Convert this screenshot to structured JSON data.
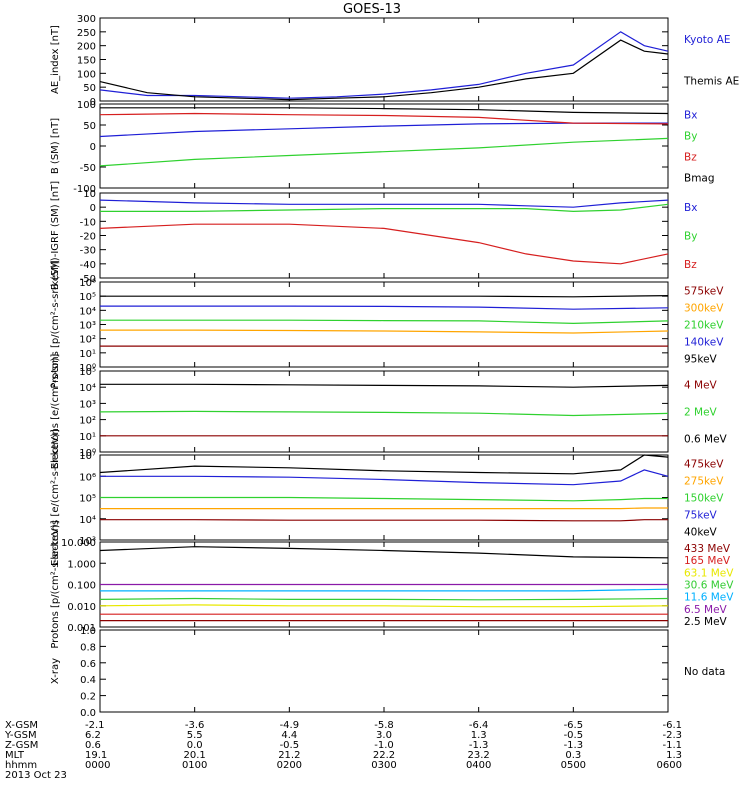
{
  "title": "GOES-13",
  "no_data_text": "No data",
  "colors": {
    "black": "#000000",
    "blue": "#1f1fd6",
    "green": "#2fd12f",
    "red": "#d61f1f",
    "darkred": "#8b0000",
    "orange": "#ffa500",
    "navy": "#1a2ecc",
    "teal": "#00a5a5",
    "yellow": "#e8e800",
    "lime": "#33cc33",
    "skyblue": "#00b0ff",
    "purple": "#8a1aa8",
    "brown": "#8b2500"
  },
  "chart_data": [
    {
      "type": "line",
      "ylabel": "AE_index [nT]",
      "ylim": [
        0,
        300
      ],
      "yticks": [
        "300",
        "250",
        "200",
        "150",
        "100",
        "50",
        "0"
      ],
      "x": [
        0,
        30,
        60,
        90,
        120,
        150,
        180,
        210,
        240,
        270,
        300,
        330,
        345,
        360
      ],
      "series": [
        {
          "name": "Kyoto AE",
          "color": "blue",
          "values": [
            40,
            20,
            20,
            15,
            10,
            15,
            25,
            40,
            60,
            100,
            130,
            250,
            200,
            180
          ]
        },
        {
          "name": "Themis AE",
          "color": "black",
          "values": [
            70,
            30,
            15,
            10,
            5,
            10,
            15,
            30,
            50,
            80,
            100,
            220,
            180,
            170
          ]
        }
      ]
    },
    {
      "type": "line",
      "ylabel": "B (SM) [nT]",
      "ylim": [
        -110,
        110
      ],
      "yticks": [
        "100",
        "50",
        "0",
        "-50",
        "-100"
      ],
      "x": [
        0,
        60,
        120,
        180,
        240,
        300,
        360
      ],
      "series": [
        {
          "name": "Bx",
          "color": "blue",
          "values": [
            25,
            38,
            45,
            52,
            58,
            60,
            60
          ]
        },
        {
          "name": "By",
          "color": "green",
          "values": [
            -52,
            -35,
            -25,
            -15,
            -5,
            10,
            20
          ]
        },
        {
          "name": "Bz",
          "color": "red",
          "values": [
            82,
            85,
            82,
            80,
            75,
            60,
            58
          ]
        },
        {
          "name": "Bmag",
          "color": "black",
          "values": [
            100,
            100,
            100,
            98,
            95,
            88,
            85
          ]
        }
      ]
    },
    {
      "type": "line",
      "ylabel": "B (SM)-IGRF (SM) [nT]",
      "ylim": [
        -50,
        10
      ],
      "yticks": [
        "10",
        "0",
        "-10",
        "-20",
        "-30",
        "-40",
        "-50"
      ],
      "x": [
        0,
        60,
        120,
        180,
        240,
        270,
        300,
        330,
        360
      ],
      "series": [
        {
          "name": "Bx",
          "color": "blue",
          "values": [
            5,
            3,
            2,
            2,
            2,
            1,
            0,
            3,
            5
          ]
        },
        {
          "name": "By",
          "color": "green",
          "values": [
            -3,
            -3,
            -2,
            -1,
            -1,
            -1,
            -3,
            -2,
            2
          ]
        },
        {
          "name": "Bz",
          "color": "red",
          "values": [
            -15,
            -12,
            -12,
            -15,
            -25,
            -33,
            -38,
            -40,
            -33
          ]
        }
      ]
    },
    {
      "type": "line",
      "ylabel": "Protons [p/(cm²-s-sr-keV)]",
      "yscale": "log",
      "ylim": [
        1,
        1000000
      ],
      "yticks": [
        "10⁶",
        "10⁵",
        "10⁴",
        "10³",
        "10²",
        "10¹",
        "10⁰"
      ],
      "x": [
        0,
        60,
        120,
        180,
        240,
        300,
        360
      ],
      "series": [
        {
          "name": "575keV",
          "color": "darkred",
          "values": [
            30,
            30,
            30,
            30,
            30,
            30,
            30
          ]
        },
        {
          "name": "300keV",
          "color": "orange",
          "values": [
            400,
            400,
            380,
            350,
            300,
            250,
            350
          ]
        },
        {
          "name": "210keV",
          "color": "green",
          "values": [
            2000,
            2000,
            2000,
            1900,
            1800,
            1200,
            1800
          ]
        },
        {
          "name": "140keV",
          "color": "blue",
          "values": [
            20000,
            20000,
            20000,
            19000,
            17000,
            12000,
            15000
          ]
        },
        {
          "name": "95keV",
          "color": "black",
          "values": [
            100000,
            100000,
            100000,
            100000,
            100000,
            90000,
            110000
          ]
        }
      ]
    },
    {
      "type": "line",
      "ylabel": "Electrons [e/(cm²-s-sr)]",
      "yscale": "log",
      "ylim": [
        1,
        100000
      ],
      "yticks": [
        "10⁵",
        "10⁴",
        "10³",
        "10²",
        "10¹",
        "10⁰"
      ],
      "x": [
        0,
        60,
        120,
        180,
        240,
        300,
        360
      ],
      "series": [
        {
          "name": "4 MeV",
          "color": "darkred",
          "values": [
            10,
            10,
            10,
            10,
            10,
            10,
            10
          ]
        },
        {
          "name": "2 MeV",
          "color": "green",
          "values": [
            300,
            320,
            300,
            280,
            250,
            180,
            240
          ]
        },
        {
          "name": "0.6 MeV",
          "color": "black",
          "values": [
            15000,
            15000,
            14000,
            13000,
            12000,
            10000,
            13000
          ]
        }
      ]
    },
    {
      "type": "line",
      "ylabel": "Electrons [e/(cm²-s-sr-keV)]",
      "yscale": "log",
      "ylim": [
        1000,
        10000000
      ],
      "yticks": [
        "10⁷",
        "10⁶",
        "10⁵",
        "10⁴",
        "10³"
      ],
      "x": [
        0,
        60,
        120,
        180,
        240,
        300,
        330,
        345,
        360
      ],
      "series": [
        {
          "name": "475keV",
          "color": "darkred",
          "values": [
            9000,
            9000,
            8500,
            8500,
            8500,
            8000,
            8000,
            9000,
            9000
          ]
        },
        {
          "name": "275keV",
          "color": "orange",
          "values": [
            30000,
            30000,
            30000,
            30000,
            30000,
            30000,
            30000,
            32000,
            32000
          ]
        },
        {
          "name": "150keV",
          "color": "green",
          "values": [
            100000,
            100000,
            100000,
            90000,
            80000,
            70000,
            80000,
            90000,
            90000
          ]
        },
        {
          "name": "75keV",
          "color": "blue",
          "values": [
            1000000,
            1000000,
            900000,
            700000,
            500000,
            400000,
            600000,
            2000000,
            1000000
          ]
        },
        {
          "name": "40keV",
          "color": "black",
          "values": [
            1500000,
            3000000,
            2500000,
            1800000,
            1500000,
            1300000,
            2000000,
            10000000,
            8000000
          ]
        }
      ]
    },
    {
      "type": "line",
      "ylabel": "Protons [p/(cm²-s-sr-keV)]",
      "yscale": "log",
      "ylim": [
        0.001,
        10
      ],
      "yticks": [
        "10.000",
        "1.000",
        "0.100",
        "0.010",
        "0.001"
      ],
      "x": [
        0,
        60,
        120,
        180,
        240,
        300,
        360
      ],
      "series": [
        {
          "name": "433 MeV",
          "color": "darkred",
          "values": [
            0.002,
            0.002,
            0.002,
            0.002,
            0.002,
            0.002,
            0.002
          ]
        },
        {
          "name": "165 MeV",
          "color": "red",
          "values": [
            0.004,
            0.004,
            0.004,
            0.004,
            0.004,
            0.004,
            0.004
          ]
        },
        {
          "name": "63.1 MeV",
          "color": "yellow",
          "values": [
            0.01,
            0.011,
            0.01,
            0.01,
            0.009,
            0.009,
            0.01
          ]
        },
        {
          "name": "30.6 MeV",
          "color": "lime",
          "values": [
            0.02,
            0.022,
            0.02,
            0.02,
            0.019,
            0.02,
            0.022
          ]
        },
        {
          "name": "11.6 MeV",
          "color": "skyblue",
          "values": [
            0.05,
            0.05,
            0.05,
            0.05,
            0.05,
            0.05,
            0.06
          ]
        },
        {
          "name": "6.5 MeV",
          "color": "purple",
          "values": [
            0.1,
            0.1,
            0.1,
            0.1,
            0.1,
            0.1,
            0.1
          ]
        },
        {
          "name": "2.5 MeV",
          "color": "black",
          "values": [
            4,
            6,
            5,
            4,
            3,
            2,
            1.8
          ]
        }
      ]
    },
    {
      "type": "line",
      "ylabel": "X-ray",
      "ylim": [
        0,
        1
      ],
      "yticks": [
        "1.0",
        "0.8",
        "0.6",
        "0.4",
        "0.2",
        "0.0"
      ],
      "x": [],
      "series": []
    }
  ],
  "x_axis": {
    "row_labels": [
      "X-GSM",
      "Y-GSM",
      "Z-GSM",
      "MLT",
      "hhmm"
    ],
    "columns": [
      [
        "-2.1",
        "6.2",
        "0.6",
        "19.1",
        "0000"
      ],
      [
        "-3.6",
        "5.5",
        "0.0",
        "20.1",
        "0100"
      ],
      [
        "-4.9",
        "4.4",
        "-0.5",
        "21.2",
        "0200"
      ],
      [
        "-5.8",
        "3.0",
        "-1.0",
        "22.2",
        "0300"
      ],
      [
        "-6.4",
        "1.3",
        "-1.3",
        "23.2",
        "0400"
      ],
      [
        "-6.5",
        "-0.5",
        "-1.3",
        "0.3",
        "0500"
      ],
      [
        "-6.1",
        "-2.3",
        "-1.1",
        "1.3",
        "0600"
      ]
    ],
    "date": "2013 Oct 23"
  }
}
